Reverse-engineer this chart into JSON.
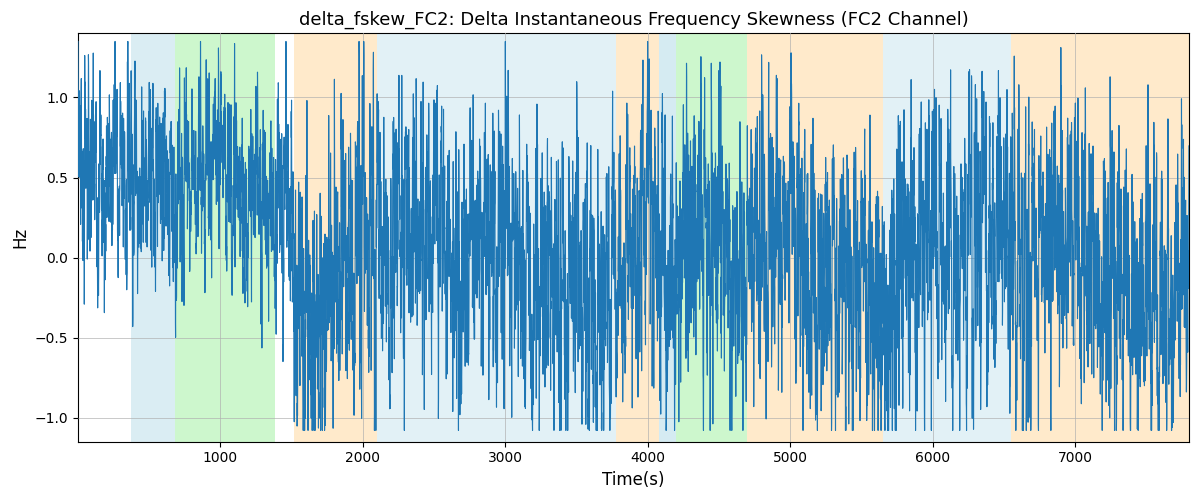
{
  "title": "delta_fskew_FC2: Delta Instantaneous Frequency Skewness (FC2 Channel)",
  "xlabel": "Time(s)",
  "ylabel": "Hz",
  "ylim": [
    -1.15,
    1.4
  ],
  "xlim": [
    0,
    7800
  ],
  "line_color": "#1f77b4",
  "line_width": 0.8,
  "background_color": "#ffffff",
  "grid_color": "#b0b0b0",
  "bands": [
    {
      "xmin": 370,
      "xmax": 680,
      "color": "#add8e6",
      "alpha": 0.45
    },
    {
      "xmin": 680,
      "xmax": 1380,
      "color": "#90ee90",
      "alpha": 0.45
    },
    {
      "xmin": 1520,
      "xmax": 2100,
      "color": "#ffd699",
      "alpha": 0.5
    },
    {
      "xmin": 2100,
      "xmax": 3780,
      "color": "#add8e6",
      "alpha": 0.35
    },
    {
      "xmin": 3780,
      "xmax": 4080,
      "color": "#ffd699",
      "alpha": 0.5
    },
    {
      "xmin": 4080,
      "xmax": 4200,
      "color": "#add8e6",
      "alpha": 0.5
    },
    {
      "xmin": 4200,
      "xmax": 4700,
      "color": "#90ee90",
      "alpha": 0.45
    },
    {
      "xmin": 4700,
      "xmax": 5650,
      "color": "#ffd699",
      "alpha": 0.5
    },
    {
      "xmin": 5650,
      "xmax": 6550,
      "color": "#add8e6",
      "alpha": 0.35
    },
    {
      "xmin": 6550,
      "xmax": 7800,
      "color": "#ffd699",
      "alpha": 0.5
    }
  ],
  "xticks": [
    1000,
    2000,
    3000,
    4000,
    5000,
    6000,
    7000
  ],
  "yticks": [
    -1.0,
    -0.5,
    0.0,
    0.5,
    1.0
  ]
}
